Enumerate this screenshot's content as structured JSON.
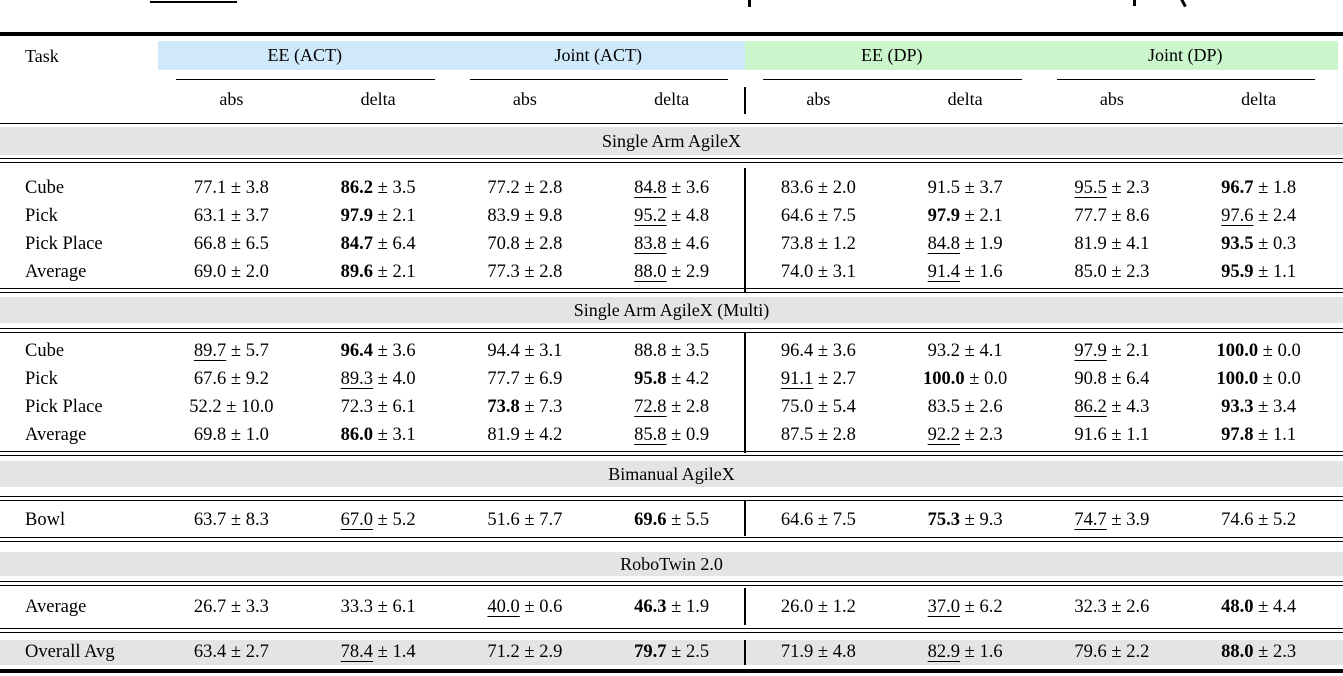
{
  "header": {
    "task_label": "Task",
    "groups": [
      {
        "label": "EE (ACT)",
        "family": "ACT"
      },
      {
        "label": "Joint (ACT)",
        "family": "ACT"
      },
      {
        "label": "EE (DP)",
        "family": "DP"
      },
      {
        "label": "Joint (DP)",
        "family": "DP"
      }
    ],
    "subcolumns": [
      "abs",
      "delta",
      "abs",
      "delta",
      "abs",
      "delta",
      "abs",
      "delta"
    ]
  },
  "colors": {
    "act_band": "#cfe8fa",
    "dp_band": "#cbf6cb",
    "section_band": "#e4e4e4",
    "overall_row_bg": "#e4e4e4",
    "rule": "#000000"
  },
  "plus_minus": "±",
  "cell_format": [
    "mean",
    "std",
    "emphasis"
  ],
  "sections": [
    {
      "title": "Single Arm AgileX",
      "rows": [
        {
          "task": "Cube",
          "cells": [
            [
              "77.1",
              "3.8",
              "none"
            ],
            [
              "86.2",
              "3.5",
              "bold"
            ],
            [
              "77.2",
              "2.8",
              "none"
            ],
            [
              "84.8",
              "3.6",
              "underline"
            ],
            [
              "83.6",
              "2.0",
              "none"
            ],
            [
              "91.5",
              "3.7",
              "none"
            ],
            [
              "95.5",
              "2.3",
              "underline"
            ],
            [
              "96.7",
              "1.8",
              "bold"
            ]
          ]
        },
        {
          "task": "Pick",
          "cells": [
            [
              "63.1",
              "3.7",
              "none"
            ],
            [
              "97.9",
              "2.1",
              "bold"
            ],
            [
              "83.9",
              "9.8",
              "none"
            ],
            [
              "95.2",
              "4.8",
              "underline"
            ],
            [
              "64.6",
              "7.5",
              "none"
            ],
            [
              "97.9",
              "2.1",
              "bold"
            ],
            [
              "77.7",
              "8.6",
              "none"
            ],
            [
              "97.6",
              "2.4",
              "underline"
            ]
          ]
        },
        {
          "task": "Pick Place",
          "cells": [
            [
              "66.8",
              "6.5",
              "none"
            ],
            [
              "84.7",
              "6.4",
              "bold"
            ],
            [
              "70.8",
              "2.8",
              "none"
            ],
            [
              "83.8",
              "4.6",
              "underline"
            ],
            [
              "73.8",
              "1.2",
              "none"
            ],
            [
              "84.8",
              "1.9",
              "underline"
            ],
            [
              "81.9",
              "4.1",
              "none"
            ],
            [
              "93.5",
              "0.3",
              "bold"
            ]
          ]
        },
        {
          "task": "Average",
          "cells": [
            [
              "69.0",
              "2.0",
              "none"
            ],
            [
              "89.6",
              "2.1",
              "bold"
            ],
            [
              "77.3",
              "2.8",
              "none"
            ],
            [
              "88.0",
              "2.9",
              "underline"
            ],
            [
              "74.0",
              "3.1",
              "none"
            ],
            [
              "91.4",
              "1.6",
              "underline"
            ],
            [
              "85.0",
              "2.3",
              "none"
            ],
            [
              "95.9",
              "1.1",
              "bold"
            ]
          ]
        }
      ]
    },
    {
      "title": "Single Arm AgileX (Multi)",
      "rows": [
        {
          "task": "Cube",
          "cells": [
            [
              "89.7",
              "5.7",
              "underline"
            ],
            [
              "96.4",
              "3.6",
              "bold"
            ],
            [
              "94.4",
              "3.1",
              "none"
            ],
            [
              "88.8",
              "3.5",
              "none"
            ],
            [
              "96.4",
              "3.6",
              "none"
            ],
            [
              "93.2",
              "4.1",
              "none"
            ],
            [
              "97.9",
              "2.1",
              "underline"
            ],
            [
              "100.0",
              "0.0",
              "bold"
            ]
          ]
        },
        {
          "task": "Pick",
          "cells": [
            [
              "67.6",
              "9.2",
              "none"
            ],
            [
              "89.3",
              "4.0",
              "underline"
            ],
            [
              "77.7",
              "6.9",
              "none"
            ],
            [
              "95.8",
              "4.2",
              "bold"
            ],
            [
              "91.1",
              "2.7",
              "underline"
            ],
            [
              "100.0",
              "0.0",
              "bold"
            ],
            [
              "90.8",
              "6.4",
              "none"
            ],
            [
              "100.0",
              "0.0",
              "bold"
            ]
          ]
        },
        {
          "task": "Pick Place",
          "cells": [
            [
              "52.2",
              "10.0",
              "none"
            ],
            [
              "72.3",
              "6.1",
              "none"
            ],
            [
              "73.8",
              "7.3",
              "bold"
            ],
            [
              "72.8",
              "2.8",
              "underline"
            ],
            [
              "75.0",
              "5.4",
              "none"
            ],
            [
              "83.5",
              "2.6",
              "none"
            ],
            [
              "86.2",
              "4.3",
              "underline"
            ],
            [
              "93.3",
              "3.4",
              "bold"
            ]
          ]
        },
        {
          "task": "Average",
          "cells": [
            [
              "69.8",
              "1.0",
              "none"
            ],
            [
              "86.0",
              "3.1",
              "bold"
            ],
            [
              "81.9",
              "4.2",
              "none"
            ],
            [
              "85.8",
              "0.9",
              "underline"
            ],
            [
              "87.5",
              "2.8",
              "none"
            ],
            [
              "92.2",
              "2.3",
              "underline"
            ],
            [
              "91.6",
              "1.1",
              "none"
            ],
            [
              "97.8",
              "1.1",
              "bold"
            ]
          ]
        }
      ]
    },
    {
      "title": "Bimanual AgileX",
      "rows": [
        {
          "task": "Bowl",
          "cells": [
            [
              "63.7",
              "8.3",
              "none"
            ],
            [
              "67.0",
              "5.2",
              "underline"
            ],
            [
              "51.6",
              "7.7",
              "none"
            ],
            [
              "69.6",
              "5.5",
              "bold"
            ],
            [
              "64.6",
              "7.5",
              "none"
            ],
            [
              "75.3",
              "9.3",
              "bold"
            ],
            [
              "74.7",
              "3.9",
              "underline"
            ],
            [
              "74.6",
              "5.2",
              "none"
            ]
          ]
        }
      ]
    },
    {
      "title": "RoboTwin 2.0",
      "rows": [
        {
          "task": "Average",
          "cells": [
            [
              "26.7",
              "3.3",
              "none"
            ],
            [
              "33.3",
              "6.1",
              "none"
            ],
            [
              "40.0",
              "0.6",
              "underline"
            ],
            [
              "46.3",
              "1.9",
              "bold"
            ],
            [
              "26.0",
              "1.2",
              "none"
            ],
            [
              "37.0",
              "6.2",
              "underline"
            ],
            [
              "32.3",
              "2.6",
              "none"
            ],
            [
              "48.0",
              "4.4",
              "bold"
            ]
          ]
        }
      ]
    }
  ],
  "overall_row": {
    "task": "Overall Avg",
    "cells": [
      [
        "63.4",
        "2.7",
        "none"
      ],
      [
        "78.4",
        "1.4",
        "underline"
      ],
      [
        "71.2",
        "2.9",
        "none"
      ],
      [
        "79.7",
        "2.5",
        "bold"
      ],
      [
        "71.9",
        "4.8",
        "none"
      ],
      [
        "82.9",
        "1.6",
        "underline"
      ],
      [
        "79.6",
        "2.2",
        "none"
      ],
      [
        "88.0",
        "2.3",
        "bold"
      ]
    ]
  }
}
